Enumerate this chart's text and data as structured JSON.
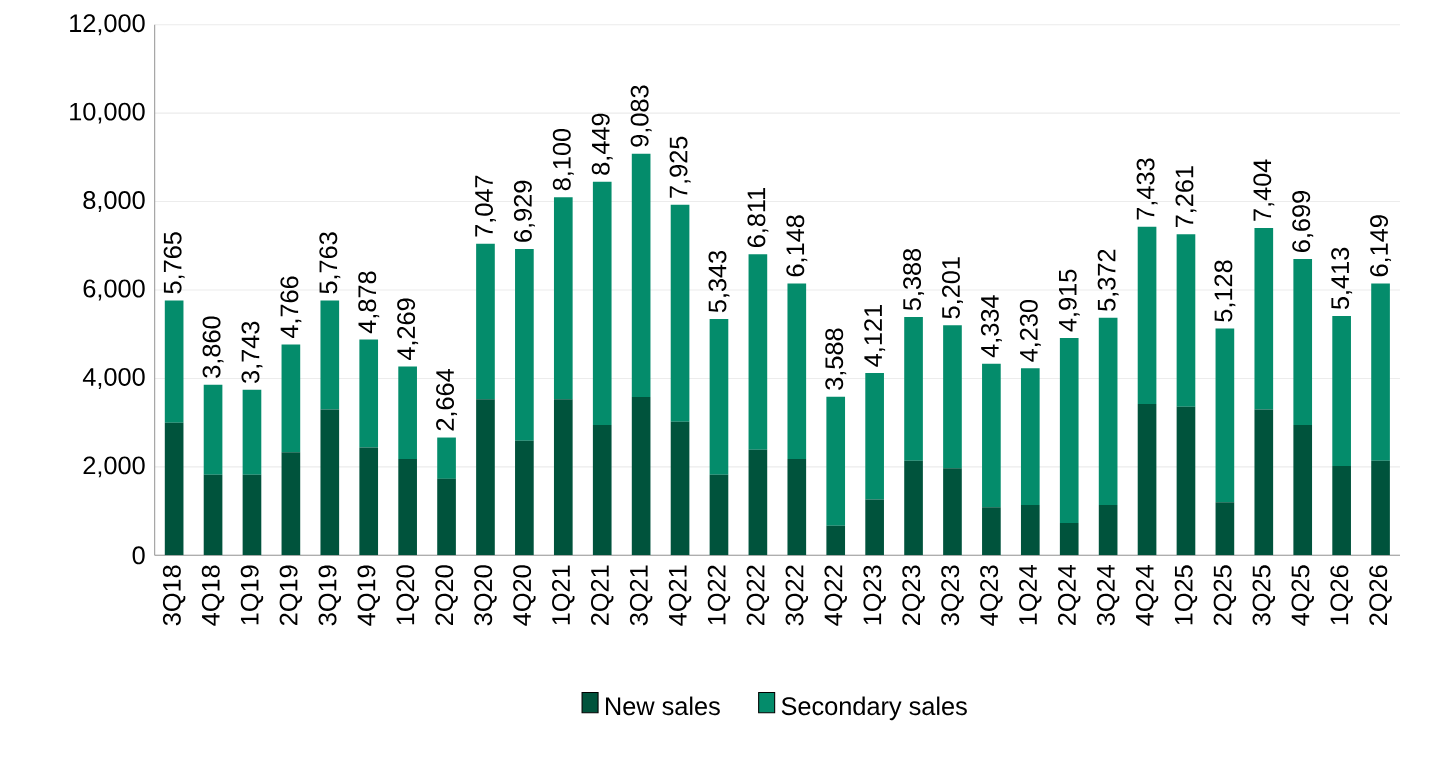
{
  "chart_data": {
    "type": "bar",
    "stacked": true,
    "categories": [
      "3Q18",
      "4Q18",
      "1Q19",
      "2Q19",
      "3Q19",
      "4Q19",
      "1Q20",
      "2Q20",
      "3Q20",
      "4Q20",
      "1Q21",
      "2Q21",
      "3Q21",
      "4Q21",
      "1Q22",
      "2Q22",
      "3Q22",
      "4Q22",
      "1Q23",
      "2Q23",
      "3Q23",
      "4Q23",
      "1Q24",
      "2Q24",
      "3Q24",
      "4Q24",
      "1Q25",
      "2Q25",
      "3Q25",
      "4Q25",
      "1Q26",
      "2Q26"
    ],
    "series": [
      {
        "name": "New sales",
        "color": "#00533c",
        "values": [
          3000,
          1820,
          1820,
          2330,
          3300,
          2440,
          2180,
          1730,
          3530,
          2590,
          3530,
          2950,
          3580,
          3020,
          1820,
          2390,
          2180,
          670,
          1260,
          2140,
          1970,
          1090,
          1140,
          730,
          1140,
          3420,
          3360,
          1200,
          3300,
          2950,
          2020,
          2140
        ]
      },
      {
        "name": "Secondary sales",
        "color": "#048c6b",
        "values": [
          2765,
          2040,
          1923,
          2436,
          2463,
          2438,
          2089,
          934,
          3517,
          4339,
          4570,
          5499,
          5503,
          4905,
          3523,
          4421,
          3968,
          2918,
          2861,
          3248,
          3231,
          3244,
          3090,
          4185,
          4232,
          4013,
          3901,
          3928,
          4104,
          3749,
          3393,
          4009
        ]
      }
    ],
    "totals": [
      "5,765",
      "3,860",
      "3,743",
      "4,766",
      "5,763",
      "4,878",
      "4,269",
      "2,664",
      "7,047",
      "6,929",
      "8,100",
      "8,449",
      "9,083",
      "7,925",
      "5,343",
      "6,811",
      "6,148",
      "3,588",
      "4,121",
      "5,388",
      "5,201",
      "4,334",
      "4,230",
      "4,915",
      "5,372",
      "7,433",
      "7,261",
      "5,128",
      "7,404",
      "6,699",
      "5,413",
      "6,149"
    ],
    "ylim": [
      0,
      12000
    ],
    "yticks": [
      0,
      {
        "value": 2000,
        "label": "2,000"
      },
      {
        "value": 4000,
        "label": "4,000"
      },
      {
        "value": 6000,
        "label": "6,000"
      },
      {
        "value": 8000,
        "label": "8,000"
      },
      {
        "value": 10000,
        "label": "10,000"
      },
      {
        "value": 12000,
        "label": "12,000"
      }
    ],
    "grid": "y",
    "legend": "bottom"
  }
}
